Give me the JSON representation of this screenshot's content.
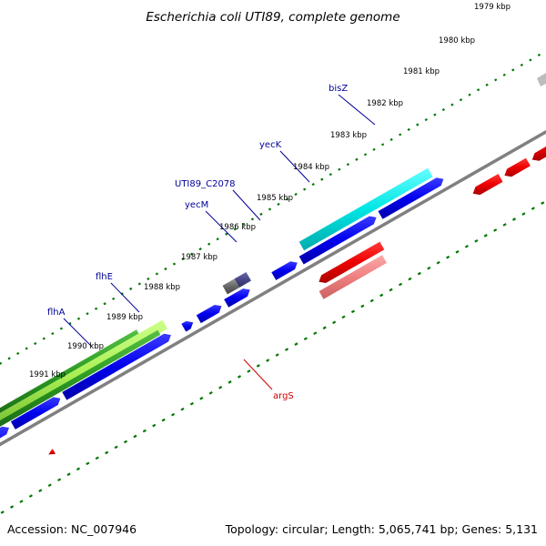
{
  "title": "Escherichia coli UTI89, complete genome",
  "footer": {
    "accession": "Accession: NC_007946",
    "stats": "Topology: circular; Length: 5,065,741 bp; Genes: 5,131"
  },
  "ticks": [
    "1979 kbp",
    "1980 kbp",
    "1981 kbp",
    "1982 kbp",
    "1983 kbp",
    "1984 kbp",
    "1985 kbp",
    "1986 kbp",
    "1987 kbp",
    "1988 kbp",
    "1989 kbp",
    "1990 kbp",
    "1991 kbp"
  ],
  "genes": [
    {
      "name": "bisZ",
      "color": "#000099"
    },
    {
      "name": "yecK",
      "color": "#000099"
    },
    {
      "name": "UTI89_C2078",
      "color": "#000099"
    },
    {
      "name": "yecM",
      "color": "#000099"
    },
    {
      "name": "flhE",
      "color": "#000099"
    },
    {
      "name": "flhA",
      "color": "#000099"
    },
    {
      "name": "argS",
      "color": "#cc0000"
    }
  ],
  "colors": {
    "backbone": "#808080",
    "tick": "#007700",
    "cds_forward": "#0000ee",
    "cds_reverse": "#ee0000",
    "trna_reverse": "#f08080",
    "highlight_cyan": "#00e5e5",
    "highlight_green": "#2a9a22",
    "highlight_lime": "#aaf055",
    "highlight_slate": "#474787",
    "highlight_gray": "#666666"
  }
}
